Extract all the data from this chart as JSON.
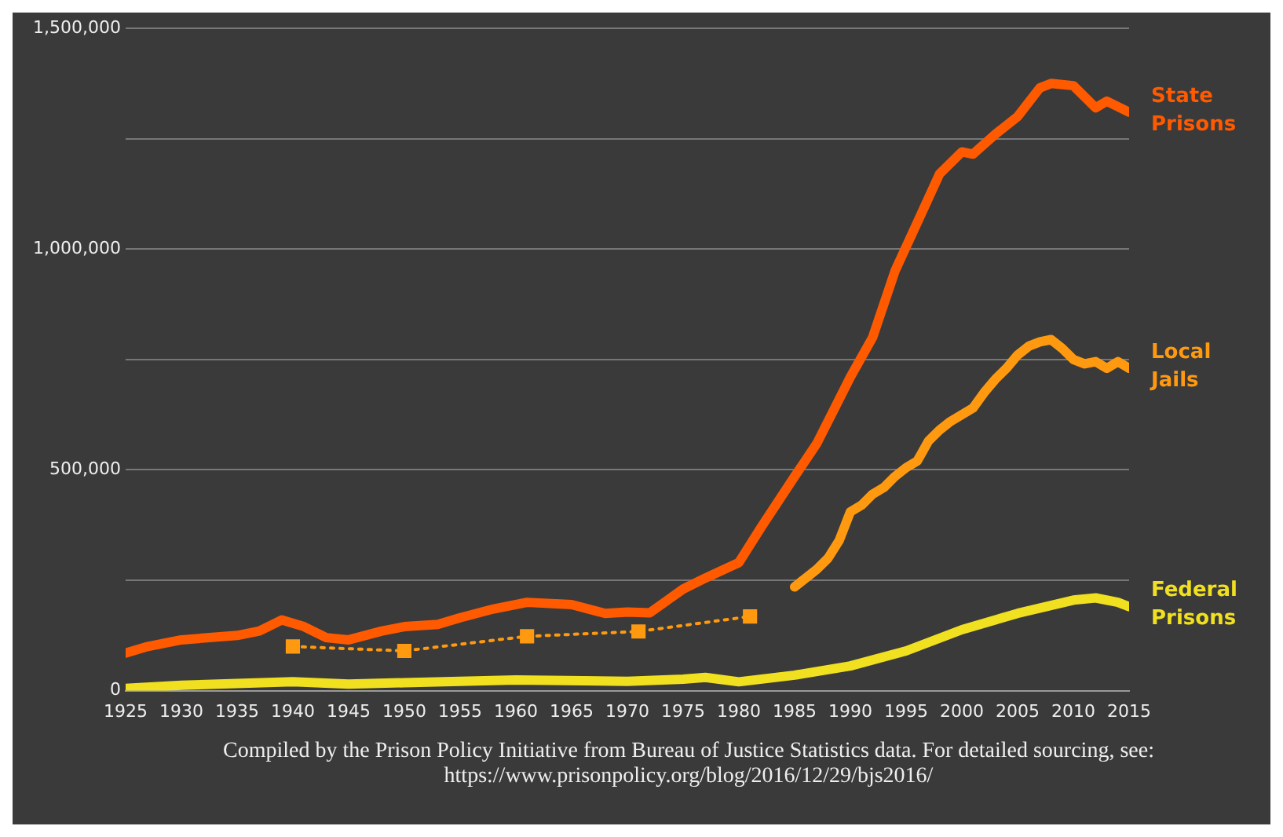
{
  "chart_data": {
    "type": "line",
    "xlim": [
      1925,
      2015
    ],
    "xticks": [
      1925,
      1930,
      1935,
      1940,
      1945,
      1950,
      1955,
      1960,
      1965,
      1970,
      1975,
      1980,
      1985,
      1990,
      1995,
      2000,
      2005,
      2010,
      2015
    ],
    "ylim": [
      0,
      1500000
    ],
    "yticks": [
      {
        "value": 0,
        "label": "0"
      },
      {
        "value": 250000,
        "label": null
      },
      {
        "value": 500000,
        "label": "500,000"
      },
      {
        "value": 750000,
        "label": null
      },
      {
        "value": 1000000,
        "label": "1,000,000"
      },
      {
        "value": 1250000,
        "label": null
      },
      {
        "value": 1500000,
        "label": "1,500,000"
      }
    ],
    "grid": "y",
    "legend": false,
    "marker": "none",
    "line_style": "solid",
    "series": [
      {
        "name": "State Prisons",
        "color": "#ff5a00",
        "x": [
          1925,
          1927,
          1930,
          1935,
          1937,
          1939,
          1941,
          1943,
          1945,
          1948,
          1950,
          1953,
          1955,
          1958,
          1961,
          1965,
          1968,
          1970,
          1972,
          1975,
          1977,
          1980,
          1982,
          1985,
          1987,
          1990,
          1992,
          1994,
          1996,
          1998,
          2000,
          2001,
          2003,
          2005,
          2007,
          2008,
          2010,
          2012,
          2013,
          2015
        ],
        "values": [
          85000,
          100000,
          115000,
          125000,
          135000,
          160000,
          145000,
          120000,
          115000,
          135000,
          145000,
          150000,
          165000,
          185000,
          200000,
          195000,
          175000,
          178000,
          176000,
          230000,
          255000,
          290000,
          370000,
          485000,
          560000,
          710000,
          800000,
          950000,
          1060000,
          1170000,
          1220000,
          1215000,
          1260000,
          1300000,
          1365000,
          1375000,
          1370000,
          1320000,
          1335000,
          1310000
        ]
      },
      {
        "name": "Local Jails",
        "color": "#ff9a10",
        "x": [
          1985,
          1986,
          1987,
          1988,
          1989,
          1990,
          1991,
          1992,
          1993,
          1994,
          1995,
          1996,
          1997,
          1998,
          1999,
          2000,
          2001,
          2002,
          2003,
          2004,
          2005,
          2006,
          2007,
          2008,
          2009,
          2010,
          2011,
          2012,
          2013,
          2014,
          2015
        ],
        "values": [
          235000,
          255000,
          275000,
          300000,
          340000,
          405000,
          420000,
          445000,
          460000,
          485000,
          505000,
          520000,
          565000,
          590000,
          610000,
          625000,
          640000,
          675000,
          705000,
          730000,
          760000,
          780000,
          790000,
          795000,
          775000,
          750000,
          740000,
          745000,
          730000,
          745000,
          730000
        ]
      },
      {
        "color": "#ff9a10",
        "marker": "square",
        "line_style": "dotted",
        "x": [
          1940,
          1950,
          1961,
          1971,
          1981
        ],
        "values": [
          100000,
          90000,
          123000,
          134000,
          168000
        ]
      },
      {
        "name": "Federal Prisons",
        "color": "#f0e020",
        "x": [
          1925,
          1930,
          1940,
          1945,
          1950,
          1960,
          1970,
          1975,
          1977,
          1980,
          1985,
          1990,
          1995,
          2000,
          2005,
          2010,
          2012,
          2014,
          2015
        ],
        "values": [
          5000,
          12000,
          20000,
          15000,
          18000,
          24000,
          21000,
          26000,
          30000,
          20000,
          35000,
          56000,
          90000,
          138000,
          175000,
          205000,
          210000,
          200000,
          190000
        ]
      }
    ],
    "annotations": [
      "Compiled by the Prison Policy Initiative from Bureau of Justice Statistics data. For detailed sourcing, see: https://www.prisonpolicy.org/blog/2016/12/29/bjs2016/"
    ]
  }
}
